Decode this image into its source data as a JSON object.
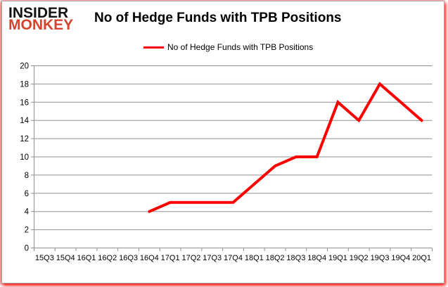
{
  "logo": {
    "line1": "INSIDER",
    "line2": "MONKEY"
  },
  "title": "No of Hedge Funds with TPB Positions",
  "legend": {
    "label": "No of Hedge Funds with TPB Positions"
  },
  "colors": {
    "line": "#ff0000",
    "grid": "#8f8f8f",
    "axis_text": "#000000",
    "logo_black": "#121212",
    "logo_red": "#d5432c",
    "background": "#ffffff",
    "glow": "#ff0000"
  },
  "chart_data": {
    "type": "line",
    "title": "No of Hedge Funds with TPB Positions",
    "categories": [
      "15Q3",
      "15Q4",
      "16Q1",
      "16Q2",
      "16Q3",
      "16Q4",
      "17Q1",
      "17Q2",
      "17Q3",
      "17Q4",
      "18Q1",
      "18Q2",
      "18Q3",
      "18Q4",
      "19Q1",
      "19Q2",
      "19Q3",
      "19Q4",
      "20Q1"
    ],
    "series": [
      {
        "name": "No of Hedge Funds with TPB Positions",
        "color": "#ff0000",
        "values": [
          null,
          null,
          null,
          null,
          null,
          4,
          5,
          5,
          5,
          5,
          7,
          9,
          10,
          10,
          16,
          14,
          18,
          16,
          14
        ]
      }
    ],
    "xlabel": "",
    "ylabel": "",
    "ylim": [
      0,
      20
    ],
    "ytick_step": 2,
    "grid": "horizontal",
    "legend_position": "top-center"
  }
}
